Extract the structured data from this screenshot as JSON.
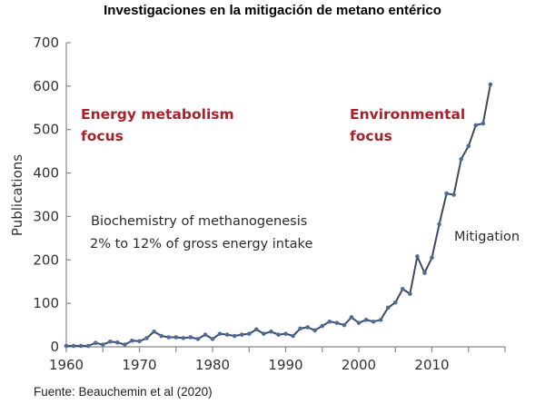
{
  "chart_data": {
    "type": "line",
    "title": "Investigaciones en la mitigación de metano entérico",
    "xlabel": "",
    "ylabel": "Publications",
    "xlim": [
      1960,
      2020
    ],
    "ylim": [
      0,
      700
    ],
    "xticks": [
      1960,
      1970,
      1980,
      1990,
      2000,
      2010
    ],
    "xminor_ticks": [
      1965,
      1975,
      1985,
      1995,
      2005,
      2015,
      2020
    ],
    "yticks": [
      0,
      100,
      200,
      300,
      400,
      500,
      600,
      700
    ],
    "grid": false,
    "series": [
      {
        "name": "Publications",
        "color": "#3c4a63",
        "marker_color": "#4d6b9a",
        "x": [
          1960,
          1961,
          1962,
          1963,
          1964,
          1965,
          1966,
          1967,
          1968,
          1969,
          1970,
          1971,
          1972,
          1973,
          1974,
          1975,
          1976,
          1977,
          1978,
          1979,
          1980,
          1981,
          1982,
          1983,
          1984,
          1985,
          1986,
          1987,
          1988,
          1989,
          1990,
          1991,
          1992,
          1993,
          1994,
          1995,
          1996,
          1997,
          1998,
          1999,
          2000,
          2001,
          2002,
          2003,
          2004,
          2005,
          2006,
          2007,
          2008,
          2009,
          2010,
          2011,
          2012,
          2013,
          2014,
          2015,
          2016,
          2017,
          2018
        ],
        "values": [
          2,
          2,
          2,
          2,
          9,
          5,
          12,
          10,
          5,
          14,
          13,
          20,
          35,
          25,
          22,
          22,
          20,
          22,
          18,
          28,
          18,
          30,
          28,
          25,
          28,
          30,
          40,
          30,
          35,
          28,
          30,
          25,
          42,
          45,
          38,
          48,
          58,
          55,
          50,
          68,
          55,
          62,
          58,
          62,
          90,
          102,
          133,
          122,
          208,
          170,
          205,
          282,
          353,
          350,
          432,
          462,
          510,
          514,
          604
        ]
      }
    ],
    "annotations": [
      {
        "text": "Energy metabolism",
        "color": "#a8202a",
        "style": "bold"
      },
      {
        "text": "focus",
        "color": "#a8202a",
        "style": "bold"
      },
      {
        "text": "Environmental",
        "color": "#a8202a",
        "style": "bold"
      },
      {
        "text": "focus",
        "color": "#a8202a",
        "style": "bold"
      },
      {
        "text": "Biochemistry of methanogenesis",
        "color": "#2b2b2b",
        "style": "normal"
      },
      {
        "text": "2% to 12% of gross energy intake",
        "color": "#2b2b2b",
        "style": "normal"
      },
      {
        "text": "Mitigation",
        "color": "#2b2b2b",
        "style": "normal"
      }
    ],
    "source": "Fuente: Beauchemin et al (2020)"
  }
}
